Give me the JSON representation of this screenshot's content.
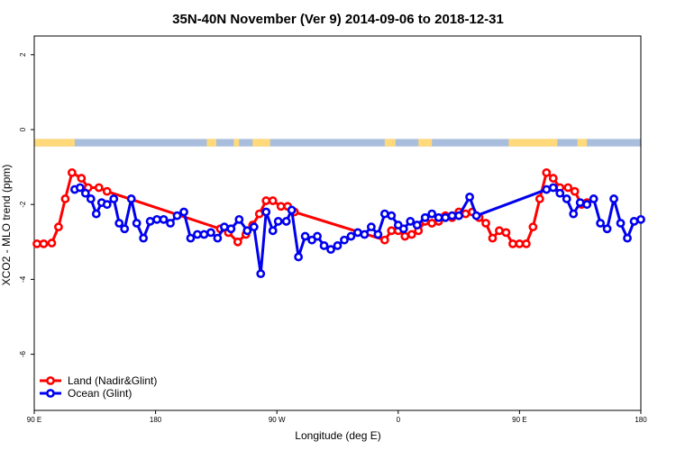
{
  "chart_data": {
    "type": "line",
    "title": "35N-40N November (Ver 9)   2014-09-06 to 2018-12-31",
    "xlabel": "Longitude (deg E)",
    "ylabel": "XCO2 - MLO trend (ppm)",
    "xlim": [
      90,
      540
    ],
    "ylim": [
      -7.5,
      2.5
    ],
    "x_ticks": [
      {
        "value": 90,
        "label": "90 E"
      },
      {
        "value": 180,
        "label": "180"
      },
      {
        "value": 270,
        "label": "90 W"
      },
      {
        "value": 360,
        "label": "0"
      },
      {
        "value": 450,
        "label": "90 E"
      },
      {
        "value": 540,
        "label": "180"
      }
    ],
    "y_ticks": [
      {
        "value": 2,
        "label": "2"
      },
      {
        "value": 0,
        "label": "0"
      },
      {
        "value": -2,
        "label": "-2"
      },
      {
        "value": -4,
        "label": "-4"
      },
      {
        "value": -6,
        "label": "-6"
      }
    ],
    "grid": false,
    "legend": {
      "position": "bottom-left"
    },
    "land_ocean_strip": {
      "y_top": -0.25,
      "y_bottom": -0.45,
      "land_color": "#ffd97a",
      "ocean_color": "#a9bedd",
      "land_intervals": [
        [
          90,
          120
        ],
        [
          218,
          225
        ],
        [
          238,
          242
        ],
        [
          252,
          265
        ],
        [
          350,
          358
        ],
        [
          375,
          385
        ],
        [
          442,
          478
        ],
        [
          493,
          500
        ]
      ]
    },
    "series": [
      {
        "name": "Land (Nadir&Glint)",
        "color": "#ff0000",
        "x": [
          92,
          97,
          103,
          108,
          113,
          118,
          125,
          130,
          138,
          144,
          228,
          234,
          241,
          247,
          252,
          257,
          262,
          267,
          273,
          278,
          283,
          350,
          355,
          360,
          365,
          370,
          375,
          380,
          385,
          390,
          395,
          400,
          405,
          410,
          415,
          420,
          425,
          430,
          435,
          440,
          445,
          450,
          455,
          460,
          465,
          470,
          475,
          480,
          486,
          491,
          496,
          500
        ],
        "y": [
          -3.05,
          -3.05,
          -3.03,
          -2.6,
          -1.85,
          -1.15,
          -1.3,
          -1.55,
          -1.55,
          -1.65,
          -2.65,
          -2.75,
          -3.0,
          -2.8,
          -2.55,
          -2.25,
          -1.9,
          -1.9,
          -2.05,
          -2.05,
          -2.2,
          -2.95,
          -2.7,
          -2.7,
          -2.85,
          -2.8,
          -2.7,
          -2.45,
          -2.5,
          -2.45,
          -2.3,
          -2.35,
          -2.2,
          -2.25,
          -2.2,
          -2.35,
          -2.5,
          -2.9,
          -2.7,
          -2.75,
          -3.05,
          -3.05,
          -3.05,
          -2.6,
          -1.85,
          -1.15,
          -1.3,
          -1.55,
          -1.55,
          -1.65,
          -2.0,
          -1.95
        ]
      },
      {
        "name": "Ocean (Glint)",
        "color": "#0000ee",
        "x": [
          120,
          124,
          128,
          132,
          136,
          140,
          144,
          149,
          153,
          157,
          162,
          166,
          171,
          176,
          181,
          186,
          191,
          196,
          201,
          206,
          211,
          216,
          221,
          226,
          231,
          236,
          242,
          248,
          253,
          258,
          262,
          267,
          271,
          277,
          281,
          286,
          291,
          296,
          300,
          305,
          310,
          315,
          320,
          325,
          330,
          335,
          340,
          345,
          350,
          355,
          360,
          364,
          369,
          374,
          380,
          385,
          390,
          395,
          400,
          405,
          413,
          418,
          470,
          475,
          480,
          485,
          490,
          495,
          500,
          505,
          510,
          515,
          520,
          525,
          530,
          535,
          540
        ],
        "y": [
          -1.6,
          -1.55,
          -1.7,
          -1.85,
          -2.25,
          -1.95,
          -2.0,
          -1.85,
          -2.5,
          -2.65,
          -1.85,
          -2.5,
          -2.9,
          -2.45,
          -2.4,
          -2.4,
          -2.5,
          -2.3,
          -2.2,
          -2.9,
          -2.8,
          -2.8,
          -2.75,
          -2.9,
          -2.6,
          -2.65,
          -2.4,
          -2.7,
          -2.6,
          -3.85,
          -2.2,
          -2.7,
          -2.45,
          -2.45,
          -2.15,
          -3.4,
          -2.85,
          -2.95,
          -2.85,
          -3.1,
          -3.2,
          -3.1,
          -2.95,
          -2.85,
          -2.75,
          -2.8,
          -2.6,
          -2.8,
          -2.25,
          -2.3,
          -2.55,
          -2.65,
          -2.45,
          -2.55,
          -2.35,
          -2.25,
          -2.35,
          -2.35,
          -2.3,
          -2.3,
          -1.8,
          -2.3,
          -1.6,
          -1.55,
          -1.7,
          -1.85,
          -2.25,
          -1.95,
          -2.0,
          -1.85,
          -2.5,
          -2.65,
          -1.85,
          -2.5,
          -2.9,
          -2.45,
          -2.4
        ]
      }
    ]
  }
}
